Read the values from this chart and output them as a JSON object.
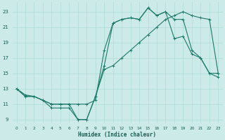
{
  "xlabel": "Humidex (Indice chaleur)",
  "background_color": "#cceae8",
  "line_color": "#1e7a6a",
  "xlim": [
    -0.5,
    23.5
  ],
  "ylim": [
    8.5,
    24.2
  ],
  "yticks": [
    9,
    11,
    13,
    15,
    17,
    19,
    21,
    23
  ],
  "xticks": [
    0,
    1,
    2,
    3,
    4,
    5,
    6,
    7,
    8,
    9,
    10,
    11,
    12,
    13,
    14,
    15,
    16,
    17,
    18,
    19,
    20,
    21,
    22,
    23
  ],
  "series1_x": [
    0,
    1,
    2,
    3,
    4,
    5,
    6,
    7,
    8,
    9,
    10,
    11,
    12,
    13,
    14,
    15,
    16,
    17,
    18,
    19,
    20,
    21,
    22,
    23
  ],
  "series1_y": [
    13.0,
    12.0,
    12.0,
    11.5,
    11.0,
    11.0,
    11.0,
    11.0,
    11.0,
    11.5,
    18.0,
    21.5,
    22.0,
    22.2,
    22.0,
    23.5,
    22.5,
    23.0,
    19.5,
    19.8,
    17.5,
    17.0,
    15.0,
    15.0
  ],
  "series2_x": [
    0,
    1,
    2,
    3,
    4,
    5,
    6,
    7,
    8,
    9,
    10,
    11,
    12,
    13,
    14,
    15,
    16,
    17,
    18,
    19,
    20,
    21,
    22,
    23
  ],
  "series2_y": [
    13.0,
    12.0,
    12.0,
    11.5,
    11.0,
    11.0,
    11.0,
    9.0,
    9.0,
    12.0,
    16.0,
    21.5,
    22.0,
    22.2,
    22.0,
    23.5,
    22.5,
    23.0,
    22.0,
    22.0,
    18.0,
    17.0,
    15.0,
    14.5
  ],
  "series3_x": [
    0,
    1,
    2,
    3,
    4,
    5,
    6,
    7,
    8,
    9,
    10,
    11,
    12,
    13,
    14,
    15,
    16,
    17,
    18,
    19,
    20,
    21,
    22,
    23
  ],
  "series3_y": [
    13.0,
    12.2,
    12.0,
    11.5,
    10.5,
    10.5,
    10.5,
    9.0,
    9.0,
    12.0,
    15.5,
    16.0,
    17.0,
    18.0,
    19.0,
    20.0,
    21.0,
    22.0,
    22.5,
    23.0,
    22.5,
    22.2,
    22.0,
    15.0
  ]
}
